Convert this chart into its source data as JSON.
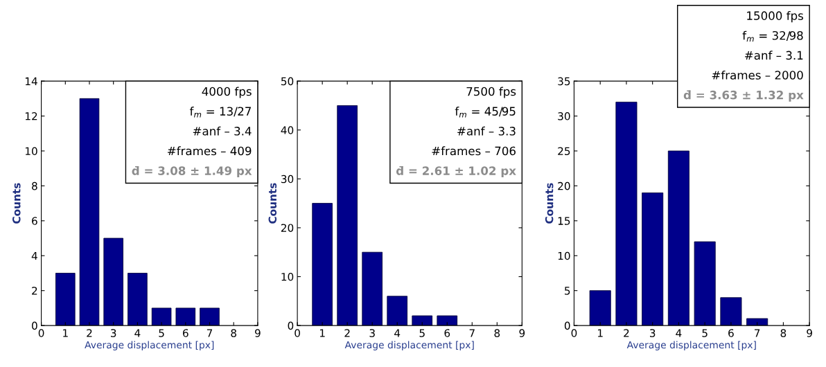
{
  "chart_data": [
    {
      "type": "bar",
      "x": [
        1,
        2,
        3,
        4,
        5,
        6,
        7
      ],
      "values": [
        3,
        13,
        5,
        3,
        1,
        1,
        1
      ],
      "color": "#00008b",
      "xlim": [
        0,
        9
      ],
      "xticks": [
        0,
        1,
        2,
        3,
        4,
        5,
        6,
        7,
        8,
        9
      ],
      "ylim": [
        0,
        14
      ],
      "yticks": [
        0,
        2,
        4,
        6,
        8,
        10,
        12,
        14
      ],
      "xlabel": "Average displacement [px]",
      "ylabel": "Counts",
      "grid": false,
      "annotations": [
        "4000 fps",
        "f$_{m}$ = 13/27",
        "#anf – 3.4",
        "#frames – 409",
        "d̄ = 3.08 ± 1.49 px"
      ]
    },
    {
      "type": "bar",
      "x": [
        1,
        2,
        3,
        4,
        5,
        6
      ],
      "values": [
        25,
        45,
        15,
        6,
        2,
        2
      ],
      "color": "#00008b",
      "xlim": [
        0,
        9
      ],
      "xticks": [
        0,
        1,
        2,
        3,
        4,
        5,
        6,
        7,
        8,
        9
      ],
      "ylim": [
        0,
        50
      ],
      "yticks": [
        0,
        10,
        20,
        30,
        40,
        50
      ],
      "xlabel": "Average displacement [px]",
      "ylabel": "Counts",
      "grid": false,
      "annotations": [
        "7500 fps",
        "f$_{m}$ = 45/95",
        "#anf – 3.3",
        "#frames – 706",
        "d̄ = 2.61 ± 1.02 px"
      ]
    },
    {
      "type": "bar",
      "x": [
        1,
        2,
        3,
        4,
        5,
        6,
        7
      ],
      "values": [
        5,
        32,
        19,
        25,
        12,
        4,
        1
      ],
      "color": "#00008b",
      "xlim": [
        0,
        9
      ],
      "xticks": [
        0,
        1,
        2,
        3,
        4,
        5,
        6,
        7,
        8,
        9
      ],
      "ylim": [
        0,
        35
      ],
      "yticks": [
        0,
        5,
        10,
        15,
        20,
        25,
        30,
        35
      ],
      "xlabel": "Average displacement [px]",
      "ylabel": "Counts",
      "grid": false,
      "annotations": [
        "15000 fps",
        "f$_{m}$ = 32/98",
        "#anf – 3.1",
        "#frames – 2000",
        "d̄ = 3.63 ± 1.32 px"
      ]
    }
  ]
}
